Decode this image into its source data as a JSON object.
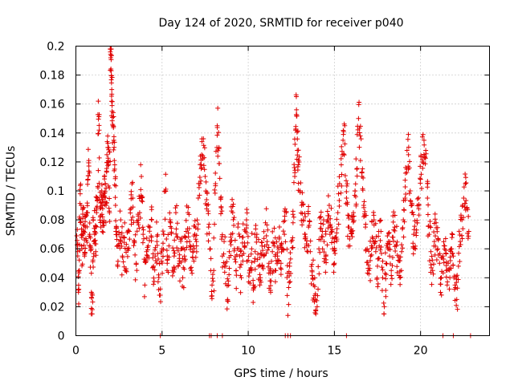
{
  "chart_data": {
    "type": "scatter",
    "title": "Day 124 of 2020, SRMTID for receiver p040",
    "xlabel": "GPS time / hours",
    "ylabel": "SRMTID / TECUs",
    "xlim": [
      0,
      24
    ],
    "ylim": [
      0,
      0.2
    ],
    "xticks": [
      0,
      5,
      10,
      15,
      20
    ],
    "xtick_labels": [
      "0",
      "5",
      "10",
      "15",
      "20"
    ],
    "yticks": [
      0,
      0.02,
      0.04,
      0.06,
      0.08,
      0.1,
      0.12,
      0.14,
      0.16,
      0.18,
      0.2
    ],
    "ytick_labels": [
      "0",
      "0.02",
      "0.04",
      "0.06",
      "0.08",
      "0.1",
      "0.12",
      "0.14",
      "0.16",
      "0.18",
      "0.2"
    ],
    "grid": true,
    "marker": "+",
    "color": "#e00000",
    "series": [
      {
        "name": "SRMTID",
        "points": [
          [
            0.05,
            0.069
          ],
          [
            0.1,
            0.058
          ],
          [
            0.15,
            0.03
          ],
          [
            0.2,
            0.045
          ],
          [
            0.25,
            0.098
          ],
          [
            0.3,
            0.09
          ],
          [
            0.35,
            0.06
          ],
          [
            0.4,
            0.081
          ],
          [
            0.45,
            0.072
          ],
          [
            0.5,
            0.055
          ],
          [
            0.55,
            0.075
          ],
          [
            0.6,
            0.066
          ],
          [
            0.65,
            0.085
          ],
          [
            0.7,
            0.108
          ],
          [
            0.75,
            0.121
          ],
          [
            0.8,
            0.07
          ],
          [
            0.85,
            0.062
          ],
          [
            0.9,
            0.03
          ],
          [
            0.95,
            0.018
          ],
          [
            1.0,
            0.08
          ],
          [
            1.05,
            0.065
          ],
          [
            1.1,
            0.072
          ],
          [
            1.15,
            0.058
          ],
          [
            1.2,
            0.085
          ],
          [
            1.25,
            0.095
          ],
          [
            1.3,
            0.162
          ],
          [
            1.35,
            0.142
          ],
          [
            1.4,
            0.088
          ],
          [
            1.45,
            0.075
          ],
          [
            1.5,
            0.1
          ],
          [
            1.55,
            0.082
          ],
          [
            1.6,
            0.078
          ],
          [
            1.65,
            0.11
          ],
          [
            1.7,
            0.105
          ],
          [
            1.75,
            0.09
          ],
          [
            1.8,
            0.125
          ],
          [
            1.85,
            0.13
          ],
          [
            1.9,
            0.118
          ],
          [
            1.95,
            0.085
          ],
          [
            2.0,
            0.196
          ],
          [
            2.02,
            0.192
          ],
          [
            2.05,
            0.183
          ],
          [
            2.08,
            0.17
          ],
          [
            2.1,
            0.155
          ],
          [
            2.15,
            0.145
          ],
          [
            2.2,
            0.135
          ],
          [
            2.25,
            0.115
          ],
          [
            2.3,
            0.09
          ],
          [
            2.35,
            0.075
          ],
          [
            2.4,
            0.062
          ],
          [
            2.5,
            0.07
          ],
          [
            2.6,
            0.08
          ],
          [
            2.7,
            0.055
          ],
          [
            2.8,
            0.068
          ],
          [
            2.9,
            0.045
          ],
          [
            3.0,
            0.06
          ],
          [
            3.1,
            0.072
          ],
          [
            3.2,
            0.088
          ],
          [
            3.3,
            0.095
          ],
          [
            3.4,
            0.065
          ],
          [
            3.5,
            0.05
          ],
          [
            3.6,
            0.078
          ],
          [
            3.7,
            0.085
          ],
          [
            3.8,
            0.11
          ],
          [
            3.9,
            0.07
          ],
          [
            4.0,
            0.035
          ],
          [
            4.1,
            0.058
          ],
          [
            4.2,
            0.062
          ],
          [
            4.3,
            0.075
          ],
          [
            4.4,
            0.08
          ],
          [
            4.5,
            0.048
          ],
          [
            4.6,
            0.055
          ],
          [
            4.7,
            0.065
          ],
          [
            4.8,
            0.042
          ],
          [
            4.9,
            0.028
          ],
          [
            5.0,
            0.06
          ],
          [
            5.1,
            0.07
          ],
          [
            5.2,
            0.1
          ],
          [
            5.3,
            0.05
          ],
          [
            5.4,
            0.062
          ],
          [
            5.5,
            0.078
          ],
          [
            5.6,
            0.045
          ],
          [
            5.7,
            0.055
          ],
          [
            5.8,
            0.085
          ],
          [
            5.9,
            0.068
          ],
          [
            6.0,
            0.05
          ],
          [
            6.1,
            0.06
          ],
          [
            6.2,
            0.04
          ],
          [
            6.3,
            0.055
          ],
          [
            6.4,
            0.072
          ],
          [
            6.5,
            0.085
          ],
          [
            6.6,
            0.065
          ],
          [
            6.7,
            0.045
          ],
          [
            6.8,
            0.058
          ],
          [
            6.9,
            0.07
          ],
          [
            7.0,
            0.062
          ],
          [
            7.1,
            0.095
          ],
          [
            7.2,
            0.105
          ],
          [
            7.3,
            0.125
          ],
          [
            7.4,
            0.136
          ],
          [
            7.5,
            0.11
          ],
          [
            7.6,
            0.09
          ],
          [
            7.7,
            0.075
          ],
          [
            7.8,
            0.06
          ],
          [
            7.9,
            0.035
          ],
          [
            8.0,
            0.045
          ],
          [
            8.1,
            0.105
          ],
          [
            8.2,
            0.145
          ],
          [
            8.3,
            0.13
          ],
          [
            8.4,
            0.095
          ],
          [
            8.5,
            0.055
          ],
          [
            8.6,
            0.065
          ],
          [
            8.7,
            0.048
          ],
          [
            8.8,
            0.025
          ],
          [
            8.9,
            0.058
          ],
          [
            9.0,
            0.07
          ],
          [
            9.1,
            0.085
          ],
          [
            9.2,
            0.06
          ],
          [
            9.3,
            0.045
          ],
          [
            9.4,
            0.075
          ],
          [
            9.5,
            0.055
          ],
          [
            9.6,
            0.04
          ],
          [
            9.7,
            0.068
          ],
          [
            9.8,
            0.062
          ],
          [
            9.9,
            0.08
          ],
          [
            10.0,
            0.052
          ],
          [
            10.1,
            0.045
          ],
          [
            10.2,
            0.06
          ],
          [
            10.3,
            0.035
          ],
          [
            10.4,
            0.058
          ],
          [
            10.5,
            0.07
          ],
          [
            10.6,
            0.048
          ],
          [
            10.7,
            0.04
          ],
          [
            10.8,
            0.062
          ],
          [
            10.9,
            0.055
          ],
          [
            11.0,
            0.078
          ],
          [
            11.1,
            0.065
          ],
          [
            11.2,
            0.05
          ],
          [
            11.3,
            0.03
          ],
          [
            11.4,
            0.058
          ],
          [
            11.5,
            0.062
          ],
          [
            11.6,
            0.045
          ],
          [
            11.7,
            0.055
          ],
          [
            11.8,
            0.068
          ],
          [
            11.9,
            0.05
          ],
          [
            12.0,
            0.06
          ],
          [
            12.1,
            0.07
          ],
          [
            12.2,
            0.085
          ],
          [
            12.3,
            0.014
          ],
          [
            12.4,
            0.048
          ],
          [
            12.5,
            0.065
          ],
          [
            12.6,
            0.078
          ],
          [
            12.7,
            0.11
          ],
          [
            12.75,
            0.142
          ],
          [
            12.8,
            0.156
          ],
          [
            12.85,
            0.128
          ],
          [
            12.9,
            0.118
          ],
          [
            13.0,
            0.1
          ],
          [
            13.1,
            0.09
          ],
          [
            13.2,
            0.08
          ],
          [
            13.3,
            0.07
          ],
          [
            13.4,
            0.062
          ],
          [
            13.5,
            0.075
          ],
          [
            13.6,
            0.058
          ],
          [
            13.7,
            0.045
          ],
          [
            13.8,
            0.035
          ],
          [
            13.9,
            0.025
          ],
          [
            14.0,
            0.02
          ],
          [
            14.1,
            0.06
          ],
          [
            14.2,
            0.082
          ],
          [
            14.3,
            0.072
          ],
          [
            14.4,
            0.065
          ],
          [
            14.5,
            0.055
          ],
          [
            14.6,
            0.08
          ],
          [
            14.7,
            0.09
          ],
          [
            14.8,
            0.075
          ],
          [
            14.9,
            0.06
          ],
          [
            15.0,
            0.05
          ],
          [
            15.1,
            0.068
          ],
          [
            15.2,
            0.085
          ],
          [
            15.3,
            0.105
          ],
          [
            15.4,
            0.118
          ],
          [
            15.5,
            0.135
          ],
          [
            15.6,
            0.145
          ],
          [
            15.7,
            0.095
          ],
          [
            15.8,
            0.075
          ],
          [
            15.9,
            0.062
          ],
          [
            16.0,
            0.072
          ],
          [
            16.1,
            0.085
          ],
          [
            16.2,
            0.1
          ],
          [
            16.3,
            0.115
          ],
          [
            16.4,
            0.15
          ],
          [
            16.5,
            0.138
          ],
          [
            16.6,
            0.11
          ],
          [
            16.7,
            0.09
          ],
          [
            16.8,
            0.075
          ],
          [
            16.9,
            0.06
          ],
          [
            17.0,
            0.045
          ],
          [
            17.1,
            0.055
          ],
          [
            17.2,
            0.068
          ],
          [
            17.3,
            0.08
          ],
          [
            17.4,
            0.058
          ],
          [
            17.5,
            0.048
          ],
          [
            17.6,
            0.062
          ],
          [
            17.7,
            0.072
          ],
          [
            17.8,
            0.04
          ],
          [
            17.9,
            0.02
          ],
          [
            18.0,
            0.05
          ],
          [
            18.1,
            0.06
          ],
          [
            18.2,
            0.055
          ],
          [
            18.3,
            0.045
          ],
          [
            18.4,
            0.068
          ],
          [
            18.5,
            0.075
          ],
          [
            18.6,
            0.062
          ],
          [
            18.7,
            0.052
          ],
          [
            18.8,
            0.04
          ],
          [
            18.9,
            0.058
          ],
          [
            19.0,
            0.08
          ],
          [
            19.1,
            0.095
          ],
          [
            19.2,
            0.115
          ],
          [
            19.3,
            0.125
          ],
          [
            19.4,
            0.1
          ],
          [
            19.5,
            0.085
          ],
          [
            19.6,
            0.07
          ],
          [
            19.7,
            0.06
          ],
          [
            19.8,
            0.078
          ],
          [
            19.9,
            0.09
          ],
          [
            20.0,
            0.108
          ],
          [
            20.1,
            0.12
          ],
          [
            20.2,
            0.135
          ],
          [
            20.3,
            0.128
          ],
          [
            20.4,
            0.095
          ],
          [
            20.5,
            0.07
          ],
          [
            20.6,
            0.058
          ],
          [
            20.7,
            0.045
          ],
          [
            20.8,
            0.065
          ],
          [
            20.9,
            0.078
          ],
          [
            21.0,
            0.06
          ],
          [
            21.1,
            0.05
          ],
          [
            21.2,
            0.04
          ],
          [
            21.3,
            0.055
          ],
          [
            21.4,
            0.062
          ],
          [
            21.5,
            0.045
          ],
          [
            21.6,
            0.05
          ],
          [
            21.7,
            0.04
          ],
          [
            21.8,
            0.06
          ],
          [
            21.9,
            0.055
          ],
          [
            22.0,
            0.035
          ],
          [
            22.1,
            0.025
          ],
          [
            22.2,
            0.048
          ],
          [
            22.3,
            0.065
          ],
          [
            22.4,
            0.08
          ],
          [
            22.5,
            0.095
          ],
          [
            22.6,
            0.105
          ],
          [
            22.7,
            0.088
          ],
          [
            22.8,
            0.072
          ]
        ]
      }
    ],
    "zero_points_x": [
      4.9,
      7.75,
      7.85,
      8.2,
      8.5,
      12.15,
      12.3,
      12.45,
      15.7,
      21.3,
      21.9,
      22.9
    ]
  }
}
